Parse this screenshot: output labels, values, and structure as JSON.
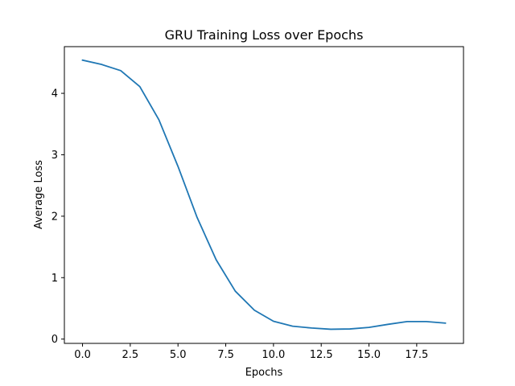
{
  "chart_data": {
    "type": "line",
    "title": "GRU Training Loss over Epochs",
    "xlabel": "Epochs",
    "ylabel": "Average Loss",
    "xlim": [
      -0.95,
      19.95
    ],
    "ylim": [
      -0.07,
      4.76
    ],
    "xticks": [
      0,
      2.5,
      5,
      7.5,
      10,
      12.5,
      15,
      17.5
    ],
    "xtick_labels": [
      "0.0",
      "2.5",
      "5.0",
      "7.5",
      "10.0",
      "12.5",
      "15.0",
      "17.5"
    ],
    "yticks": [
      0,
      1,
      2,
      3,
      4
    ],
    "ytick_labels": [
      "0",
      "1",
      "2",
      "3",
      "4"
    ],
    "grid": false,
    "series": [
      {
        "color": "#1f77b4",
        "x": [
          0,
          1,
          2,
          3,
          4,
          5,
          6,
          7,
          8,
          9,
          10,
          11,
          12,
          13,
          14,
          15,
          16,
          17,
          18,
          19
        ],
        "values": [
          4.54,
          4.47,
          4.37,
          4.11,
          3.57,
          2.81,
          1.98,
          1.29,
          0.78,
          0.47,
          0.29,
          0.21,
          0.18,
          0.16,
          0.165,
          0.19,
          0.24,
          0.285,
          0.285,
          0.26
        ]
      }
    ]
  }
}
